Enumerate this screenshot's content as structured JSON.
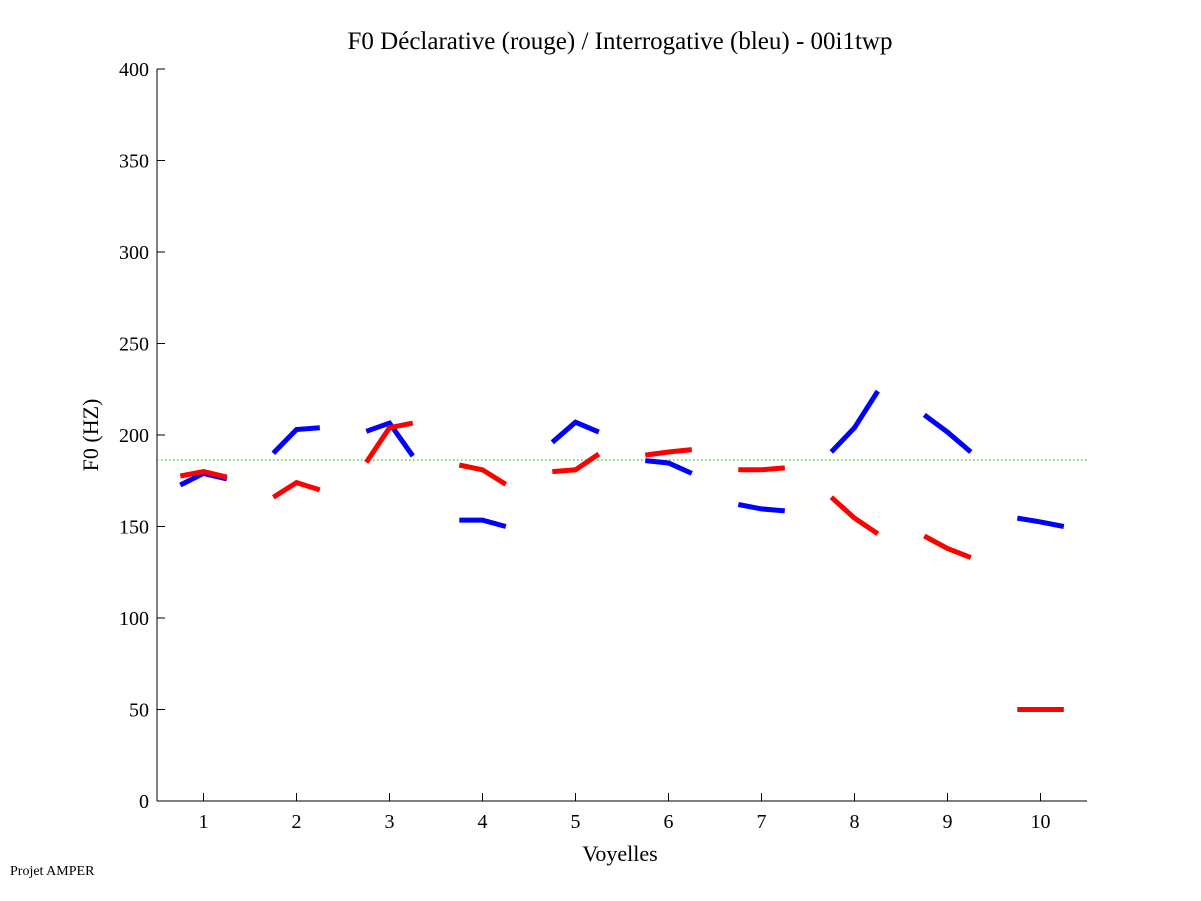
{
  "chart_data": {
    "type": "line",
    "title": "F0 Déclarative (rouge) / Interrogative (bleu) - 00i1twp",
    "xlabel": "Voyelles",
    "ylabel": "F0 (HZ)",
    "xlim": [
      0.5,
      10.5
    ],
    "ylim": [
      0,
      400
    ],
    "xticks": [
      "1",
      "2",
      "3",
      "4",
      "5",
      "6",
      "7",
      "8",
      "9",
      "10"
    ],
    "yticks": [
      "0",
      "50",
      "100",
      "150",
      "200",
      "250",
      "300",
      "350",
      "400"
    ],
    "grid": false,
    "reference_line": {
      "value": 186.3,
      "color": "#00cc00",
      "style": "dotted"
    },
    "segment_offsets": [
      -0.25,
      0,
      0.25
    ],
    "series": [
      {
        "name": "Interrogative (bleu)",
        "color": "#0000ff",
        "values": [
          [
            172.7,
            179,
            176
          ],
          [
            190,
            203,
            204
          ],
          [
            202,
            206.5,
            188.5
          ],
          [
            153.5,
            153.5,
            150
          ],
          [
            196,
            207,
            201.6
          ],
          [
            186,
            184.7,
            179
          ],
          [
            162,
            159.6,
            158.5
          ],
          [
            190.7,
            204,
            224
          ],
          [
            211,
            201.6,
            190.7
          ],
          [
            154.6,
            152.5,
            150
          ]
        ]
      },
      {
        "name": "Déclarative (rouge)",
        "color": "#ff0000",
        "values": [
          [
            177.6,
            180,
            177
          ],
          [
            166,
            174,
            170
          ],
          [
            185,
            204,
            206.5
          ],
          [
            183.6,
            181,
            173
          ],
          [
            180,
            181,
            189.6
          ],
          [
            189,
            190.7,
            192
          ],
          [
            181,
            181,
            182
          ],
          [
            166,
            154.6,
            146
          ],
          [
            144.8,
            138,
            133
          ],
          [
            50,
            50,
            50
          ]
        ]
      }
    ]
  },
  "footer": "Projet AMPER"
}
